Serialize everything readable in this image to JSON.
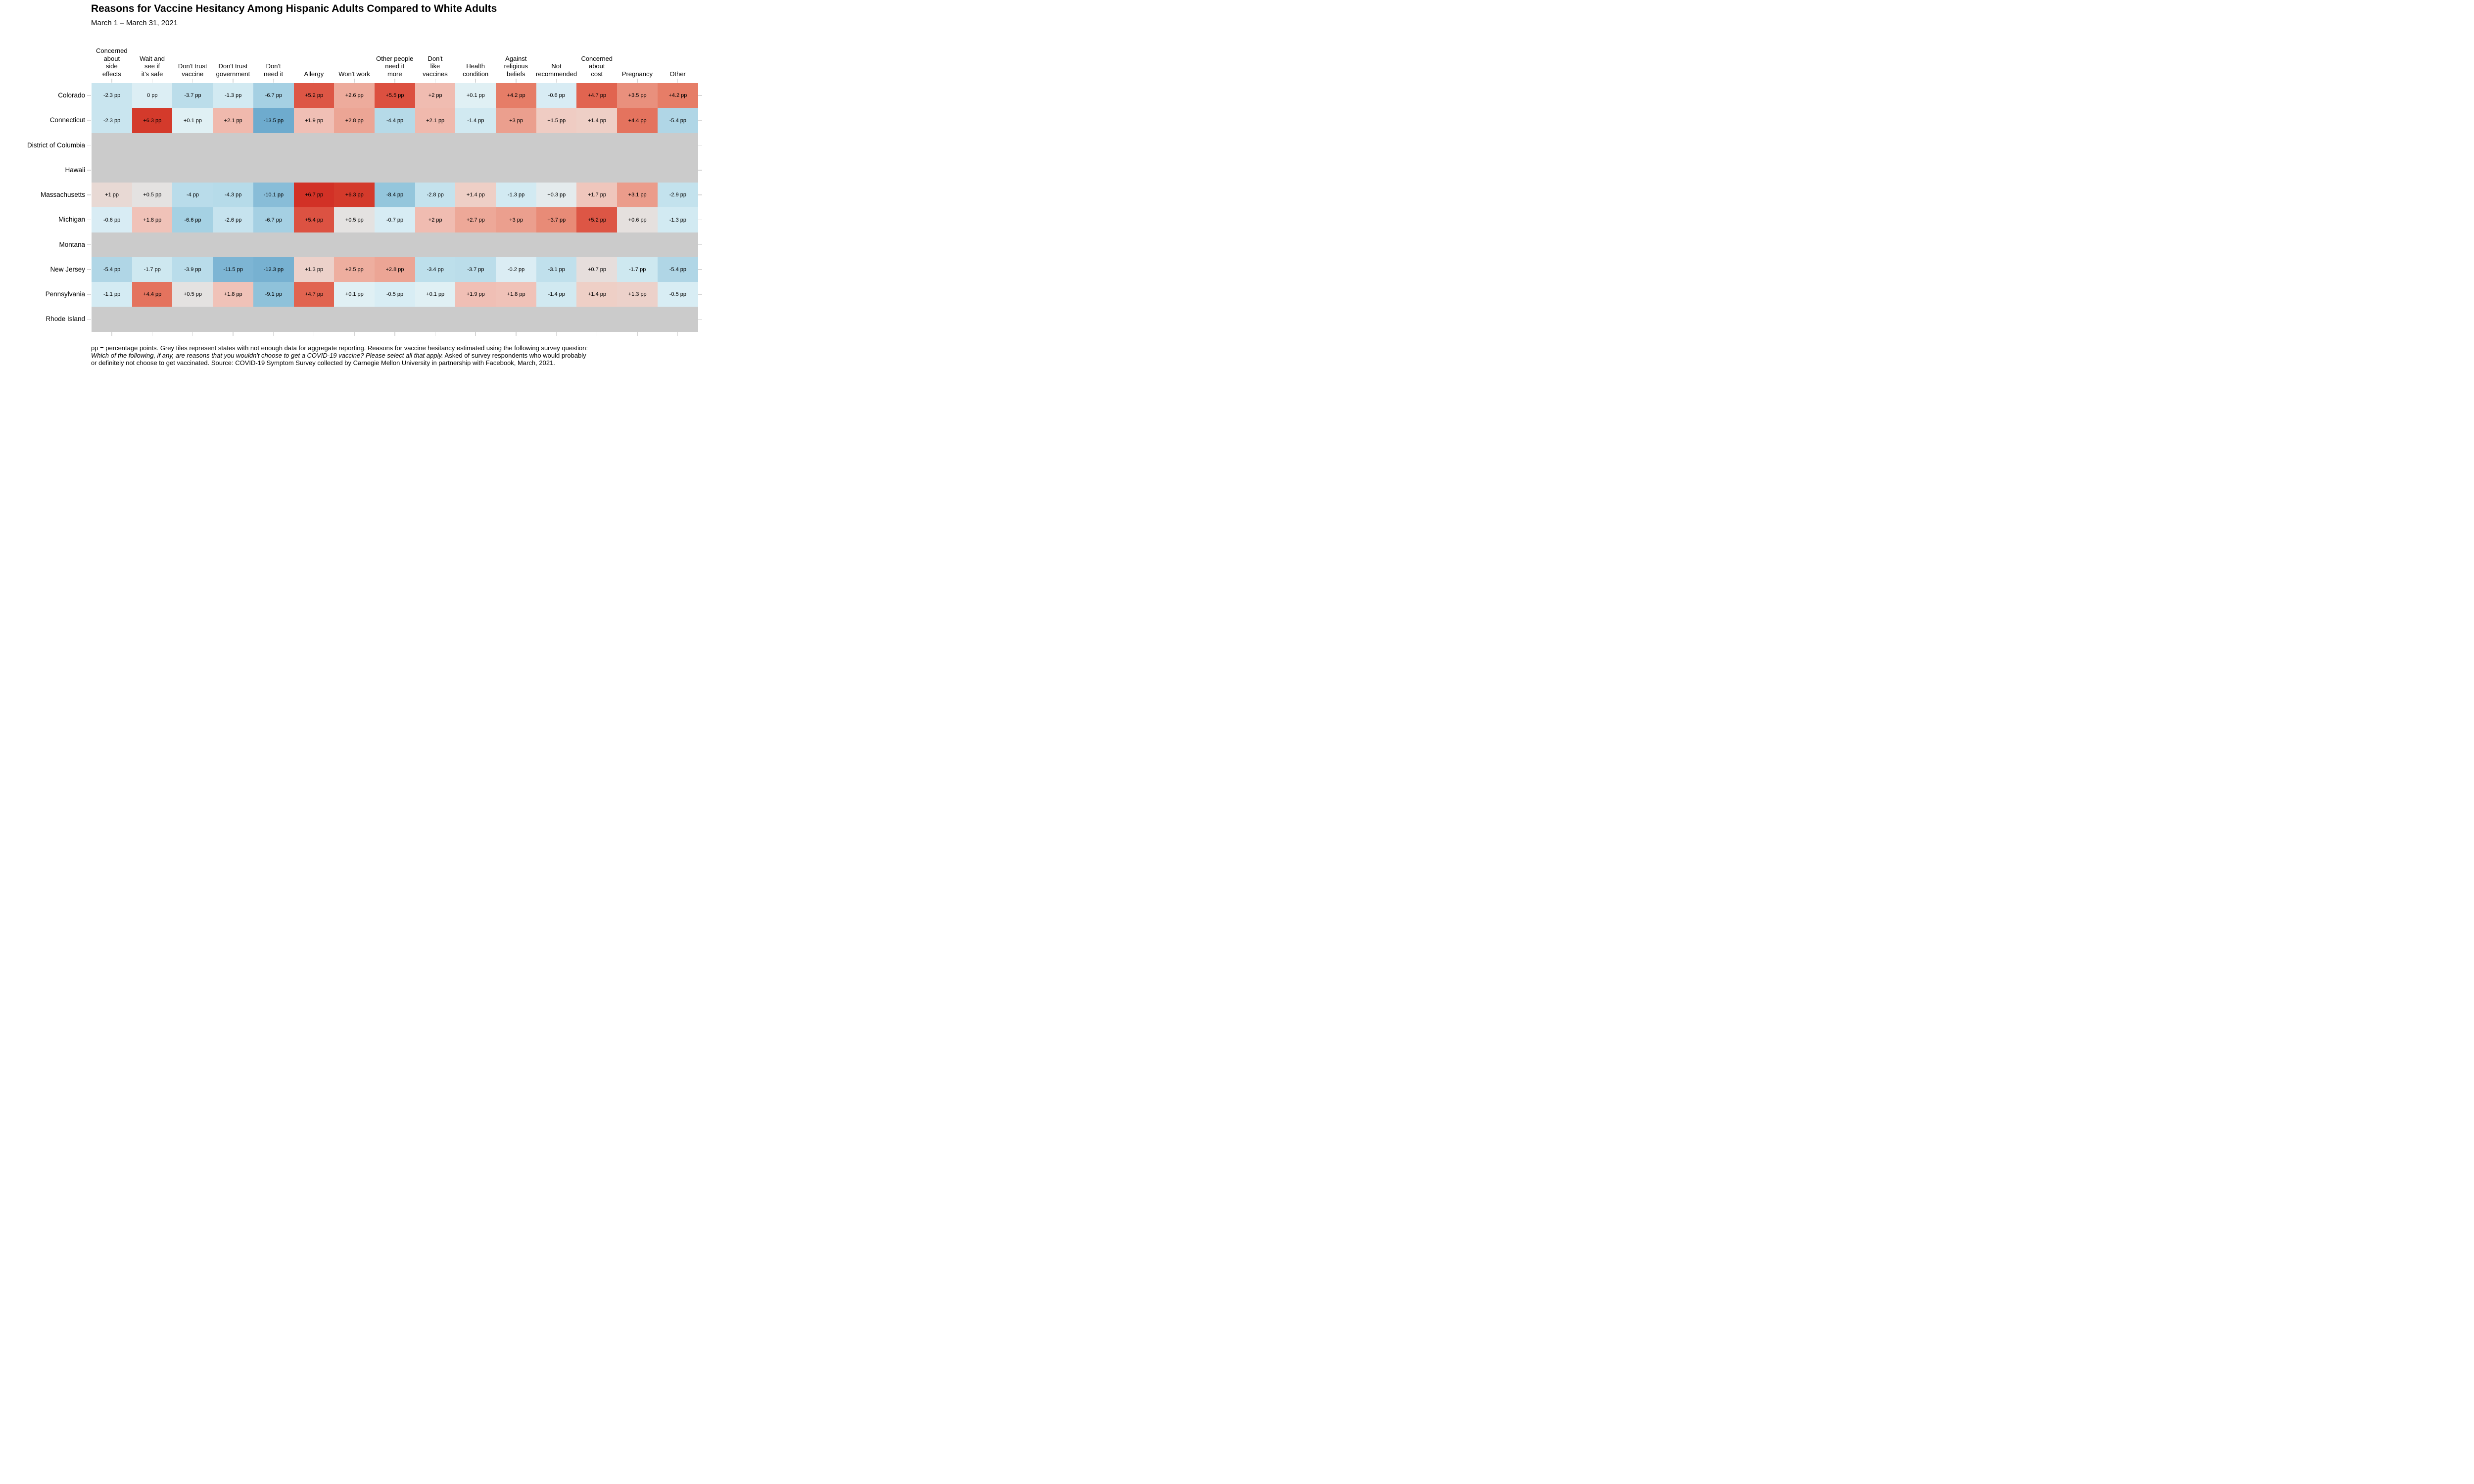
{
  "title": "Reasons for Vaccine Hesitancy Among Hispanic Adults Compared to White Adults",
  "subtitle": "March 1 – March 31, 2021",
  "chart_data": {
    "type": "heatmap",
    "unit": "pp",
    "columns": [
      {
        "label": "Concerned about side effects",
        "lines": [
          "Concerned",
          "about",
          "side",
          "effects"
        ]
      },
      {
        "label": "Wait and see if it's safe",
        "lines": [
          "Wait and",
          "see if",
          "it's safe"
        ]
      },
      {
        "label": "Don't trust vaccine",
        "lines": [
          "Don't trust",
          "vaccine"
        ]
      },
      {
        "label": "Don't trust government",
        "lines": [
          "Don't trust",
          "government"
        ]
      },
      {
        "label": "Don't need it",
        "lines": [
          "Don't",
          "need it"
        ]
      },
      {
        "label": "Allergy",
        "lines": [
          "Allergy"
        ]
      },
      {
        "label": "Won't work",
        "lines": [
          "Won't work"
        ]
      },
      {
        "label": "Other people need it more",
        "lines": [
          "Other people",
          "need it",
          "more"
        ]
      },
      {
        "label": "Don't like vaccines",
        "lines": [
          "Don't",
          "like",
          "vaccines"
        ]
      },
      {
        "label": "Health condition",
        "lines": [
          "Health",
          "condition"
        ]
      },
      {
        "label": "Against religious beliefs",
        "lines": [
          "Against",
          "religious",
          "beliefs"
        ]
      },
      {
        "label": "Not recommended",
        "lines": [
          "Not",
          "recommended"
        ]
      },
      {
        "label": "Concerned about cost",
        "lines": [
          "Concerned",
          "about",
          "cost"
        ]
      },
      {
        "label": "Pregnancy",
        "lines": [
          "Pregnancy"
        ]
      },
      {
        "label": "Other",
        "lines": [
          "Other"
        ]
      }
    ],
    "rows": [
      "Colorado",
      "Connecticut",
      "District of Columbia",
      "Hawaii",
      "Massachusetts",
      "Michigan",
      "Montana",
      "New Jersey",
      "Pennsylvania",
      "Rhode Island"
    ],
    "values": [
      [
        -2.3,
        0,
        -3.7,
        -1.3,
        -6.7,
        5.2,
        2.6,
        5.5,
        2,
        0.1,
        4.2,
        -0.6,
        4.7,
        3.5,
        4.2
      ],
      [
        -2.3,
        6.3,
        0.1,
        2.1,
        -13.5,
        1.9,
        2.8,
        -4.4,
        2.1,
        -1.4,
        3,
        1.5,
        1.4,
        4.4,
        -5.4
      ],
      null,
      null,
      [
        1,
        0.5,
        -4,
        -4.3,
        -10.1,
        6.7,
        6.3,
        -8.4,
        -2.8,
        1.4,
        -1.3,
        0.3,
        1.7,
        3.1,
        -2.9
      ],
      [
        -0.6,
        1.8,
        -6.6,
        -2.6,
        -6.7,
        5.4,
        0.5,
        -0.7,
        2,
        2.7,
        3,
        3.7,
        5.2,
        0.6,
        -1.3
      ],
      null,
      [
        -5.4,
        -1.7,
        -3.9,
        -11.5,
        -12.3,
        1.3,
        2.5,
        2.8,
        -3.4,
        -3.7,
        -0.2,
        -3.1,
        0.7,
        -1.7,
        -5.4
      ],
      [
        -1.1,
        4.4,
        0.5,
        1.8,
        -9.1,
        4.7,
        0.1,
        -0.5,
        0.1,
        1.9,
        1.8,
        -1.4,
        1.4,
        1.3,
        -0.5
      ],
      null
    ],
    "missing_rows": [
      "District of Columbia",
      "Hawaii",
      "Montana",
      "Rhode Island"
    ],
    "legend": "none",
    "grid": "off",
    "colors": {
      "missing_tile": "#cbcbcb",
      "tick": "#d6d6d6",
      "cell_text": "#000000",
      "scale_anchors": [
        [
          -14,
          "#6aa8cc"
        ],
        [
          -12,
          "#79b2d2"
        ],
        [
          -10,
          "#89bed8"
        ],
        [
          -8.5,
          "#93c5dc"
        ],
        [
          -7,
          "#a2cfe2"
        ],
        [
          -5.5,
          "#afd6e6"
        ],
        [
          -4.5,
          "#b5dae8"
        ],
        [
          -3.5,
          "#bcdeeb"
        ],
        [
          -2.5,
          "#c7e4ee"
        ],
        [
          -1.5,
          "#d0e9f1"
        ],
        [
          -0.7,
          "#d7ecf4"
        ],
        [
          0,
          "#dceef4"
        ],
        [
          0.1,
          "#e0f0f4"
        ],
        [
          0.3,
          "#e4ebed"
        ],
        [
          0.5,
          "#e4e2e1"
        ],
        [
          1,
          "#e8d9d4"
        ],
        [
          1.5,
          "#efccc3"
        ],
        [
          2,
          "#f0bcb1"
        ],
        [
          2.5,
          "#eeae9f"
        ],
        [
          3,
          "#eb9f8e"
        ],
        [
          3.5,
          "#e9907d"
        ],
        [
          4.2,
          "#e67d67"
        ],
        [
          4.7,
          "#e16450"
        ],
        [
          5.2,
          "#dd5645"
        ],
        [
          5.5,
          "#dc5040"
        ],
        [
          6,
          "#d6402f"
        ],
        [
          6.7,
          "#d23126"
        ]
      ]
    }
  },
  "footer": {
    "lines": [
      [
        {
          "text": "pp = percentage points. Grey tiles represent states with not enough data for aggregate reporting. Reasons for vaccine hesitancy estimated using the following survey question:",
          "italic": false
        }
      ],
      [
        {
          "text": "Which of the following, if any, are reasons that you wouldn't choose to get a COVID-19 vaccine? Please select all that apply.",
          "italic": true
        },
        {
          "text": " Asked of survey respondents who would probably",
          "italic": false
        }
      ],
      [
        {
          "text": "or definitely not choose to get vaccinated. Source: COVID-19 Symptom Survey collected by Carnegie Mellon University in partnership with Facebook, March, 2021.",
          "italic": false
        }
      ]
    ]
  }
}
